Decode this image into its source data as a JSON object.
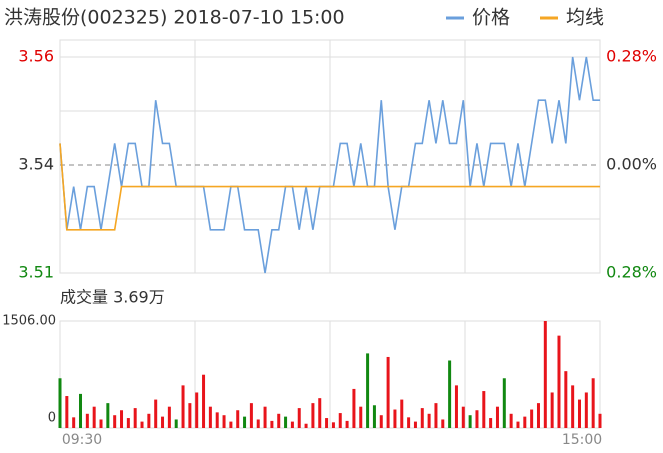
{
  "chart_data": {
    "type": "intraday",
    "title": "洪涛股份(002325) 2018-07-10 15:00",
    "volume_title": "成交量 3.69万",
    "categories": [
      "09:30",
      null,
      null,
      null,
      null,
      null,
      null,
      null,
      null,
      null,
      null,
      null,
      null,
      null,
      null,
      null,
      null,
      null,
      null,
      null,
      null,
      null,
      null,
      null,
      null,
      null,
      null,
      null,
      null,
      null,
      null,
      null,
      null,
      null,
      null,
      null,
      null,
      null,
      null,
      null,
      null,
      null,
      null,
      null,
      null,
      null,
      null,
      null,
      null,
      null,
      null,
      null,
      null,
      null,
      null,
      null,
      null,
      null,
      null,
      null,
      null,
      null,
      null,
      null,
      null,
      null,
      null,
      null,
      null,
      null,
      null,
      null,
      null,
      null,
      null,
      null,
      null,
      null,
      null,
      "15:00"
    ],
    "series": [
      {
        "name": "价格",
        "color": "#6a9fdc",
        "values": [
          3.54,
          3.52,
          3.53,
          3.52,
          3.53,
          3.53,
          3.52,
          3.53,
          3.54,
          3.53,
          3.54,
          3.54,
          3.53,
          3.53,
          3.55,
          3.54,
          3.54,
          3.53,
          3.53,
          3.53,
          3.53,
          3.53,
          3.52,
          3.52,
          3.52,
          3.53,
          3.53,
          3.52,
          3.52,
          3.52,
          3.51,
          3.52,
          3.52,
          3.53,
          3.53,
          3.52,
          3.53,
          3.52,
          3.53,
          3.53,
          3.53,
          3.54,
          3.54,
          3.53,
          3.54,
          3.53,
          3.53,
          3.55,
          3.53,
          3.52,
          3.53,
          3.53,
          3.54,
          3.54,
          3.55,
          3.54,
          3.55,
          3.54,
          3.54,
          3.55,
          3.53,
          3.54,
          3.53,
          3.54,
          3.54,
          3.54,
          3.53,
          3.54,
          3.53,
          3.54,
          3.55,
          3.55,
          3.54,
          3.55,
          3.54,
          3.56,
          3.55,
          3.56,
          3.55,
          3.55
        ]
      },
      {
        "name": "均线",
        "color": "#f5a623",
        "values": [
          3.54,
          3.52,
          3.52,
          3.52,
          3.52,
          3.52,
          3.52,
          3.52,
          3.52,
          3.53,
          3.53,
          3.53,
          3.53,
          3.53,
          3.53,
          3.53,
          3.53,
          3.53,
          3.53,
          3.53,
          3.53,
          3.53,
          3.53,
          3.53,
          3.53,
          3.53,
          3.53,
          3.53,
          3.53,
          3.53,
          3.53,
          3.53,
          3.53,
          3.53,
          3.53,
          3.53,
          3.53,
          3.53,
          3.53,
          3.53,
          3.53,
          3.53,
          3.53,
          3.53,
          3.53,
          3.53,
          3.53,
          3.53,
          3.53,
          3.53,
          3.53,
          3.53,
          3.53,
          3.53,
          3.53,
          3.53,
          3.53,
          3.53,
          3.53,
          3.53,
          3.53,
          3.53,
          3.53,
          3.53,
          3.53,
          3.53,
          3.53,
          3.53,
          3.53,
          3.53,
          3.53,
          3.53,
          3.53,
          3.53,
          3.53,
          3.53,
          3.53,
          3.53,
          3.53,
          3.53
        ]
      }
    ],
    "ylim": [
      3.51,
      3.56
    ],
    "yticks": [
      3.56,
      {
        "value": 3.535,
        "label": "3.54"
      },
      3.51
    ],
    "tick_colors": [
      "#e00000",
      "#333333",
      "#118811"
    ],
    "y2lim": [
      -0.28,
      0.28
    ],
    "y2ticks": [
      {
        "value": 0.28,
        "label": "0.28%"
      },
      {
        "value": 0,
        "label": "0.00%"
      },
      {
        "value": -0.28,
        "label": "0.28%"
      }
    ],
    "volume": {
      "values": [
        700,
        450,
        150,
        480,
        200,
        300,
        120,
        350,
        180,
        250,
        140,
        280,
        90,
        200,
        400,
        160,
        300,
        120,
        600,
        350,
        500,
        750,
        300,
        220,
        180,
        90,
        250,
        160,
        350,
        120,
        300,
        100,
        200,
        160,
        90,
        280,
        60,
        350,
        420,
        140,
        80,
        210,
        100,
        550,
        300,
        1050,
        320,
        180,
        1000,
        260,
        400,
        150,
        90,
        280,
        200,
        350,
        120,
        950,
        600,
        300,
        180,
        250,
        520,
        140,
        300,
        700,
        200,
        90,
        160,
        260,
        350,
        1506,
        500,
        1300,
        800,
        600,
        400,
        500,
        700,
        200
      ],
      "green": [
        0,
        3,
        7,
        17,
        27,
        33,
        45,
        46,
        57,
        60,
        65
      ],
      "up_color": "#e8141b",
      "down_color": "#118811",
      "ylim": [
        0,
        1506
      ],
      "yticks": [
        {
          "value": 1506,
          "label": "1506.00"
        },
        0
      ]
    }
  }
}
